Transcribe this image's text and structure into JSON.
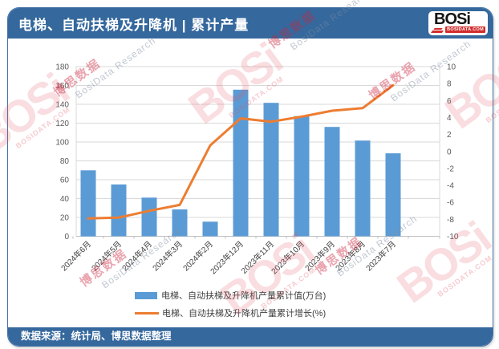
{
  "header": {
    "title": "电梯、自动扶梯及升降机 | 累计产量"
  },
  "logo": {
    "text": "BOSi",
    "site": "BOSIDATA.COM"
  },
  "footer": {
    "source": "数据来源：统计局、博思数据整理"
  },
  "watermarks": {
    "cn": "博思数据",
    "en": "BosiData Research",
    "logo": "BOSi",
    "site": "BOSIDATA.COM"
  },
  "colors": {
    "band": "#35689D",
    "card_border": "#4472A4",
    "bar": "#5B9BD5",
    "line": "#ED7D31",
    "grid": "#D9D9D9",
    "axis_line": "#BFBFBF",
    "axis_text": "#595959",
    "logo_red": "#D22C2C"
  },
  "chart_data": {
    "type": "bar",
    "combo": "bar+line",
    "title": "电梯、自动扶梯及升降机 | 累计产量",
    "categories": [
      "2024年6月",
      "2024年5月",
      "2024年4月",
      "2024年3月",
      "2024年2月",
      "2023年12月",
      "2023年11月",
      "2023年10月",
      "2023年9月",
      "2023年8月",
      "2023年7月"
    ],
    "series": [
      {
        "name": "电梯、自动扶梯及升降机产量累计值(万台)",
        "type": "bar",
        "axis": "left",
        "color": "#5B9BD5",
        "values": [
          70,
          55,
          41,
          28.5,
          15.5,
          155.5,
          141.5,
          127.5,
          116,
          101.5,
          88
        ]
      },
      {
        "name": "电梯、自动扶梯及升降机产量累计增长(%)",
        "type": "line",
        "axis": "right",
        "color": "#ED7D31",
        "values": [
          -7.9,
          -7.8,
          -7.0,
          -6.3,
          0.7,
          3.9,
          3.5,
          4.1,
          4.8,
          5.1,
          7.8
        ]
      }
    ],
    "left_axis": {
      "min": 0,
      "max": 180,
      "step": 20
    },
    "right_axis": {
      "min": -10,
      "max": 10,
      "step": 2
    },
    "grid": true,
    "legend_position": "bottom",
    "x_label_rotation": -45
  }
}
